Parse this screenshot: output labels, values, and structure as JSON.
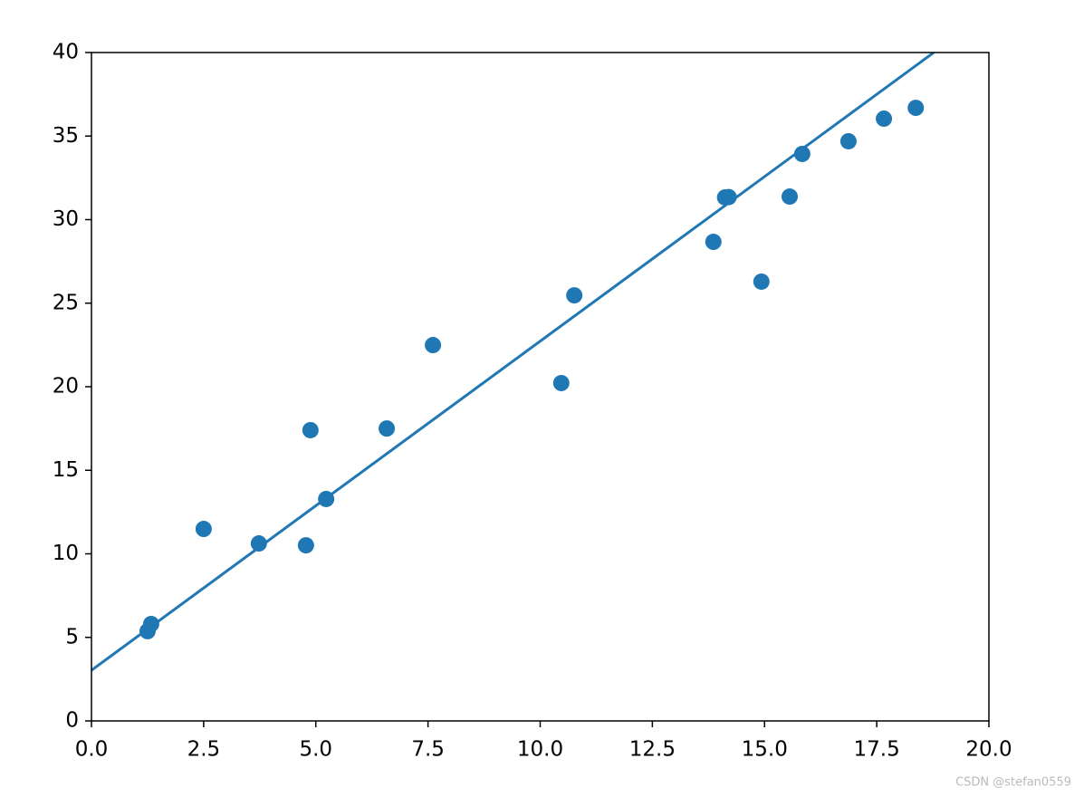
{
  "chart_data": {
    "type": "scatter",
    "xlim": [
      0,
      20
    ],
    "xticks": [
      {
        "value": 0,
        "label": "0.0"
      },
      {
        "value": 2.5,
        "label": "2.5"
      },
      {
        "value": 5,
        "label": "5.0"
      },
      {
        "value": 7.5,
        "label": "7.5"
      },
      {
        "value": 10,
        "label": "10.0"
      },
      {
        "value": 12.5,
        "label": "12.5"
      },
      {
        "value": 15,
        "label": "15.0"
      },
      {
        "value": 17.5,
        "label": "17.5"
      },
      {
        "value": 20,
        "label": "20.0"
      }
    ],
    "ylim": [
      0,
      40
    ],
    "yticks": [
      0,
      5,
      10,
      15,
      20,
      25,
      30,
      35,
      40
    ],
    "grid": false,
    "series": [
      {
        "type": "scatter",
        "color": "#1f77b4",
        "x": [
          1.25,
          1.33,
          2.5,
          3.73,
          4.78,
          4.88,
          5.23,
          6.58,
          7.61,
          10.47,
          10.76,
          13.86,
          14.12,
          14.2,
          14.93,
          15.56,
          15.84,
          16.87,
          17.66,
          18.37
        ],
        "y": [
          5.37,
          5.8,
          11.49,
          10.62,
          10.51,
          17.4,
          13.28,
          17.5,
          22.49,
          20.22,
          25.47,
          28.67,
          31.33,
          31.35,
          26.29,
          31.38,
          33.93,
          34.69,
          36.04,
          36.69
        ]
      },
      {
        "type": "line",
        "color": "#1f77b4",
        "x": [
          0,
          18.77
        ],
        "y": [
          3.03,
          40
        ]
      }
    ],
    "watermark": "CSDN @stefan0559"
  }
}
